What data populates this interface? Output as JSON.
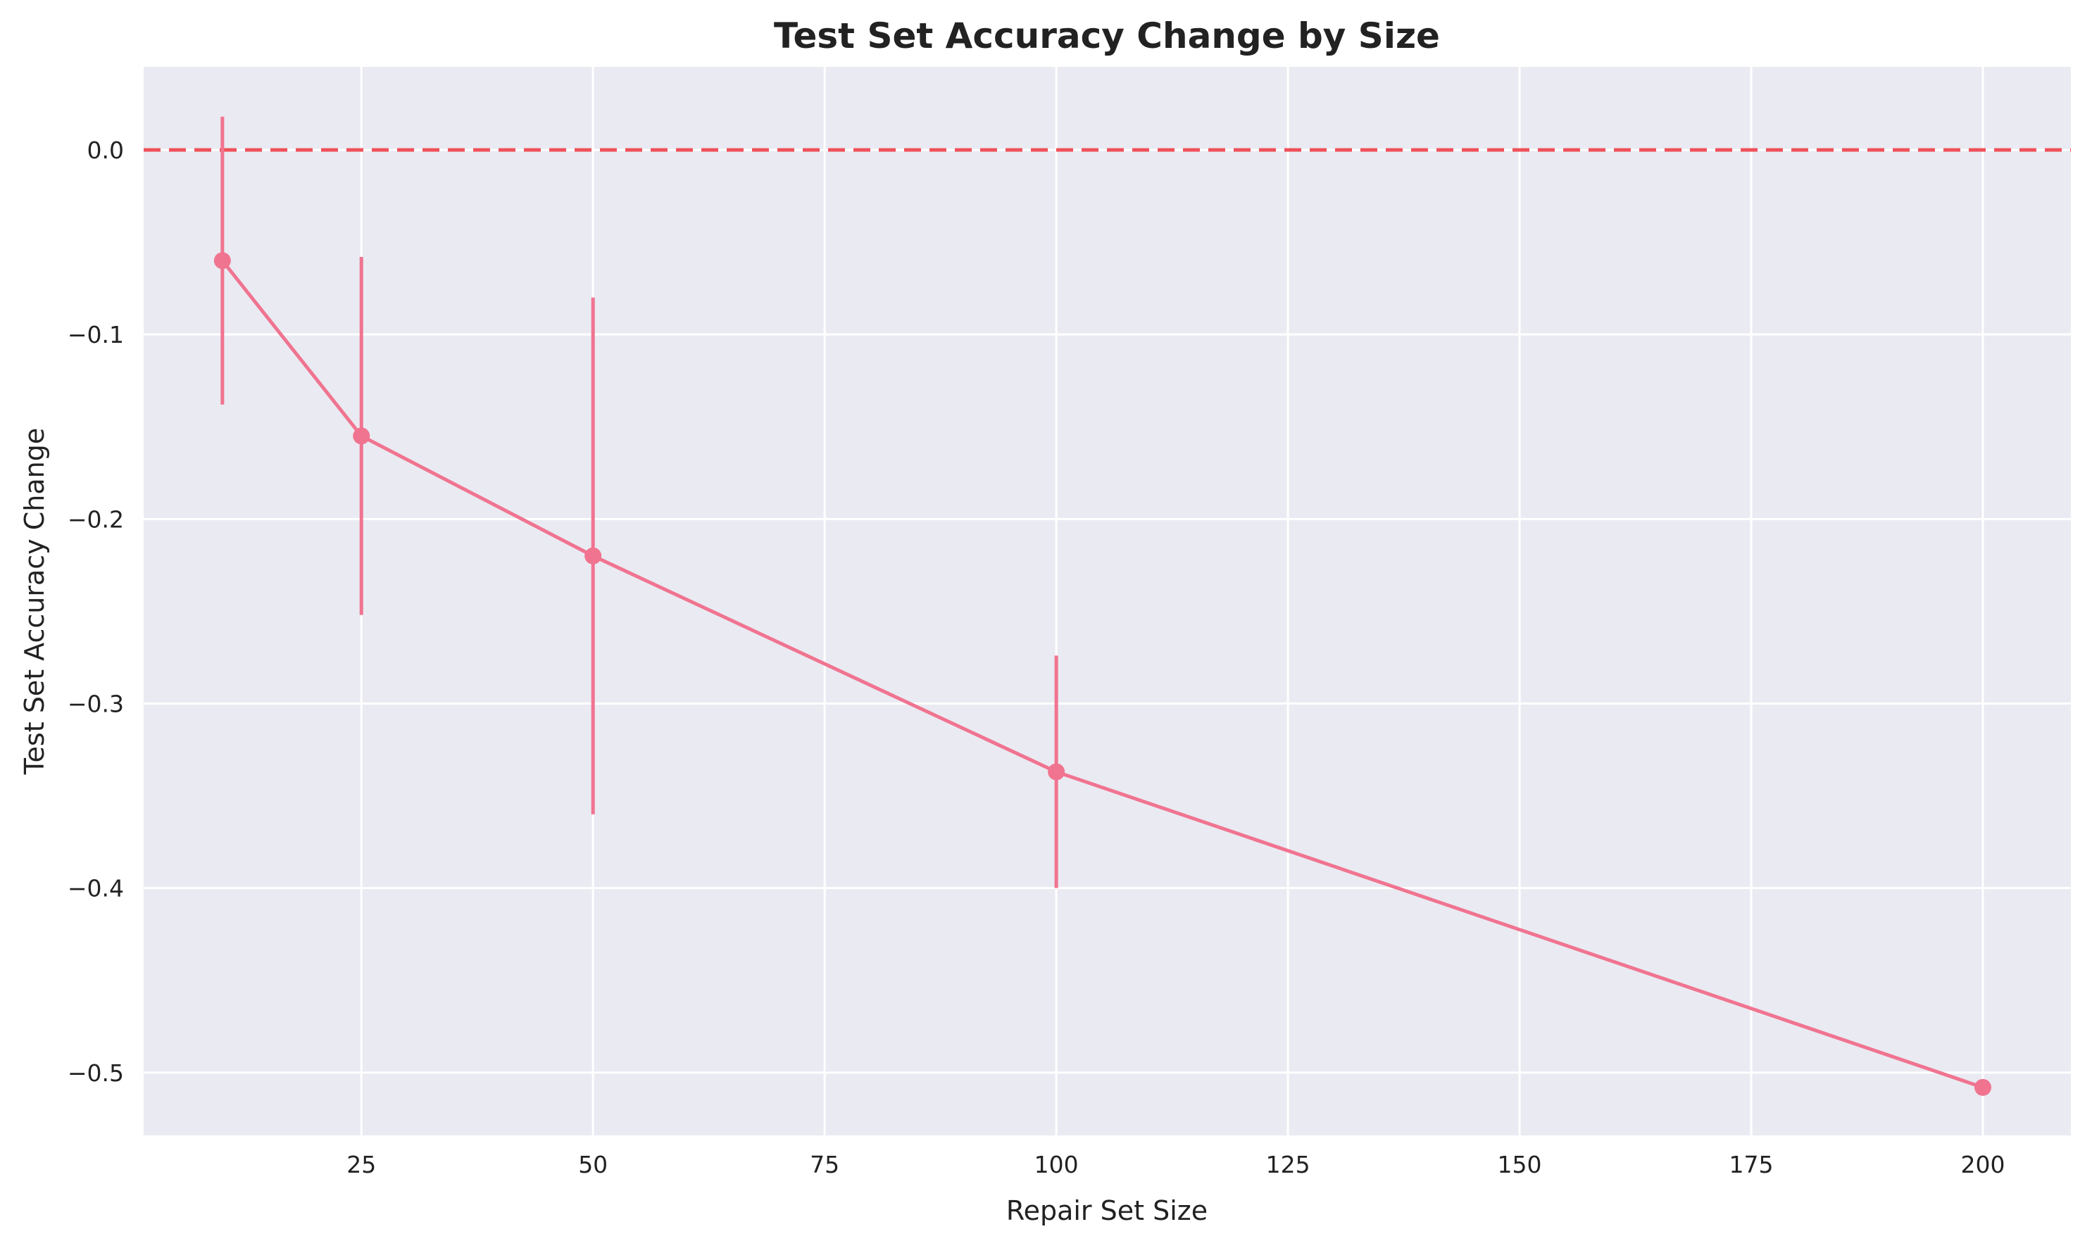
{
  "chart_data": {
    "type": "line",
    "title": "Test Set Accuracy Change by Size",
    "xlabel": "Repair Set Size",
    "ylabel": "Test Set Accuracy Change",
    "xlim": [
      1.5,
      209.5
    ],
    "ylim": [
      -0.534,
      0.045
    ],
    "x_ticks": [
      25,
      50,
      75,
      100,
      125,
      150,
      175,
      200
    ],
    "y_ticks": [
      0.0,
      -0.1,
      -0.2,
      -0.3,
      -0.4,
      -0.5
    ],
    "y_tick_labels": [
      "0.0",
      "−0.1",
      "−0.2",
      "−0.3",
      "−0.4",
      "−0.5"
    ],
    "grid": true,
    "reference_line": {
      "y": 0.0,
      "style": "dashed",
      "color": "#f0505a"
    },
    "series": [
      {
        "x": [
          10,
          25,
          50,
          100,
          200
        ],
        "y": [
          -0.06,
          -0.155,
          -0.22,
          -0.337,
          -0.508
        ],
        "error": [
          0.078,
          0.097,
          0.14,
          0.063,
          0
        ],
        "color": "#f07490"
      }
    ],
    "colors": {
      "background": "#eaeaf2",
      "grid": "#ffffff"
    }
  }
}
